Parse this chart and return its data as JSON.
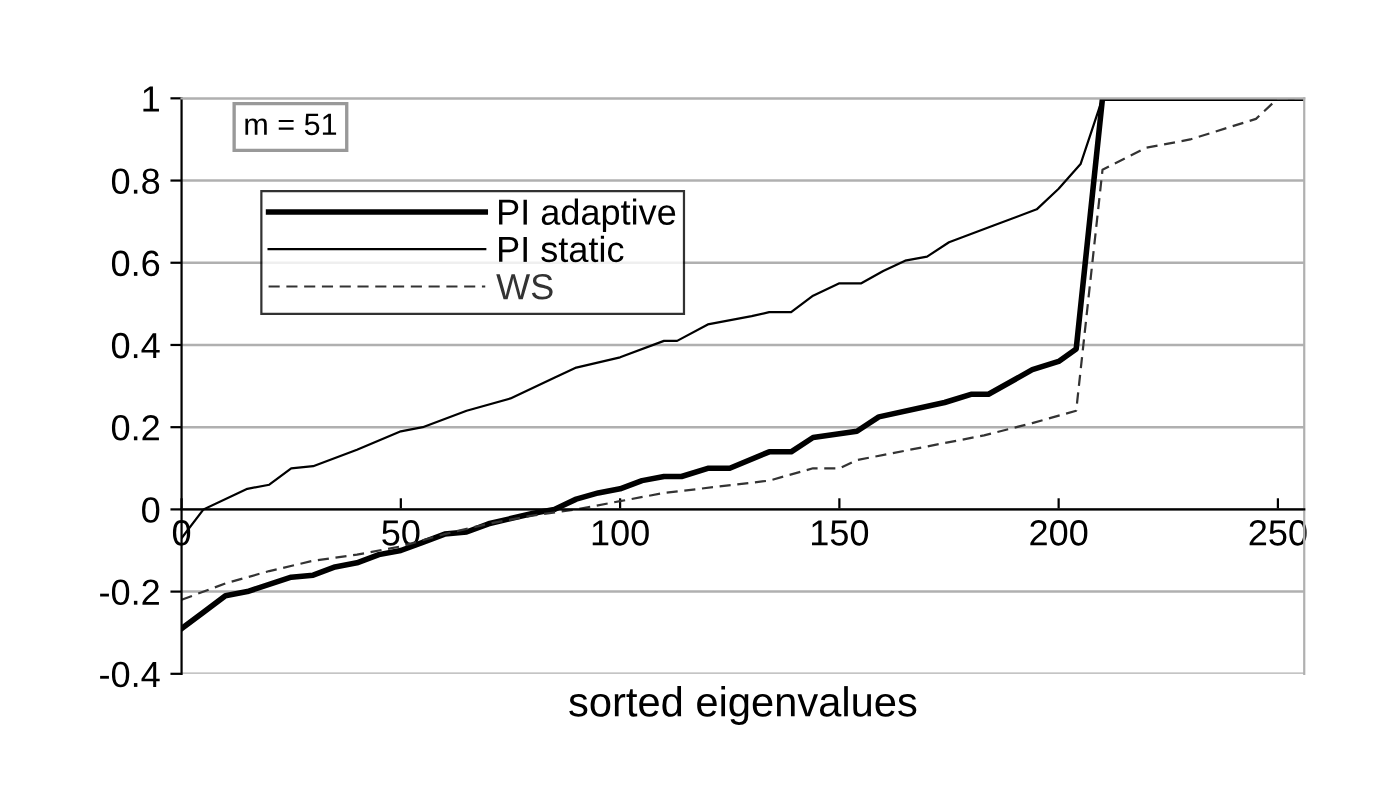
{
  "chart_data": {
    "type": "line",
    "xlabel": "sorted eigenvalues",
    "annotations": [
      "m = 51"
    ],
    "xlim": [
      0,
      256
    ],
    "ylim": [
      -0.4,
      1
    ],
    "xticks": [
      0,
      50,
      100,
      150,
      200,
      250
    ],
    "yticks": [
      -0.4,
      -0.2,
      0,
      0.2,
      0.4,
      0.6,
      0.8,
      1
    ],
    "grid": "y",
    "legend": "top left",
    "marker": "none",
    "series": [
      {
        "name": "PI adaptive",
        "color": "#000000",
        "line_style": "solid",
        "x": [
          0,
          5,
          10,
          15,
          25,
          30,
          35,
          40,
          45,
          50,
          55,
          60,
          65,
          70,
          80,
          85,
          90,
          95,
          100,
          105,
          110,
          114,
          120,
          125,
          134,
          139,
          144,
          154,
          159,
          174,
          180,
          184,
          194,
          200,
          204,
          210,
          256
        ],
        "values": [
          -0.29,
          -0.25,
          -0.21,
          -0.2,
          -0.165,
          -0.16,
          -0.14,
          -0.13,
          -0.11,
          -0.1,
          -0.08,
          -0.06,
          -0.055,
          -0.035,
          -0.01,
          0,
          0.025,
          0.04,
          0.05,
          0.07,
          0.08,
          0.08,
          0.1,
          0.1,
          0.14,
          0.14,
          0.175,
          0.19,
          0.225,
          0.26,
          0.28,
          0.28,
          0.34,
          0.36,
          0.39,
          1,
          1
        ]
      },
      {
        "name": "PI static",
        "color": "#000000",
        "line_style": "solid",
        "x": [
          0,
          5,
          15,
          20,
          25,
          30,
          40,
          50,
          55,
          65,
          75,
          85,
          90,
          100,
          110,
          113,
          120,
          130,
          134,
          139,
          144,
          150,
          155,
          160,
          165,
          170,
          175,
          185,
          195,
          200,
          205,
          210,
          256
        ],
        "values": [
          -0.07,
          0,
          0.05,
          0.06,
          0.1,
          0.105,
          0.145,
          0.19,
          0.2,
          0.24,
          0.27,
          0.32,
          0.345,
          0.37,
          0.41,
          0.41,
          0.45,
          0.47,
          0.48,
          0.48,
          0.52,
          0.55,
          0.55,
          0.58,
          0.605,
          0.615,
          0.65,
          0.69,
          0.73,
          0.78,
          0.84,
          1,
          1
        ]
      },
      {
        "name": "WS",
        "color": "#333333",
        "line_style": "dashed",
        "x": [
          0,
          10,
          20,
          30,
          40,
          50,
          60,
          70,
          80,
          90,
          100,
          110,
          134,
          144,
          150,
          154,
          183,
          194,
          204,
          210,
          220,
          230,
          245,
          250,
          256
        ],
        "values": [
          -0.22,
          -0.18,
          -0.15,
          -0.125,
          -0.11,
          -0.09,
          -0.06,
          -0.035,
          -0.015,
          0,
          0.02,
          0.04,
          0.07,
          0.1,
          0.1,
          0.12,
          0.18,
          0.21,
          0.24,
          0.826,
          0.88,
          0.9,
          0.95,
          1,
          1
        ]
      }
    ]
  }
}
